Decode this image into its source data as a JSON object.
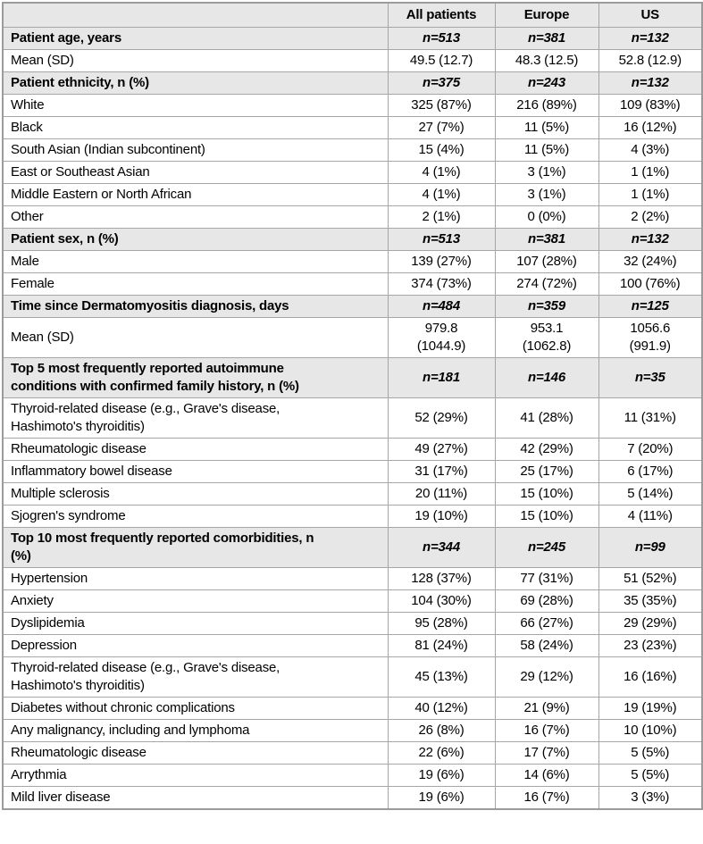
{
  "colors": {
    "section_row_bg": "#e7e7e7",
    "grid_border": "#a6a6a6",
    "text": "#000000"
  },
  "table": {
    "columns": [
      "",
      "All patients",
      "Europe",
      "US"
    ],
    "rows": [
      {
        "type": "section",
        "label": "Patient age, years",
        "values": [
          "n=513",
          "n=381",
          "n=132"
        ]
      },
      {
        "type": "data",
        "label": "Mean (SD)",
        "values": [
          "49.5 (12.7)",
          "48.3 (12.5)",
          "52.8 (12.9)"
        ]
      },
      {
        "type": "section",
        "label": "Patient ethnicity, n (%)",
        "values": [
          "n=375",
          "n=243",
          "n=132"
        ]
      },
      {
        "type": "data",
        "label": "White",
        "values": [
          "325 (87%)",
          "216 (89%)",
          "109 (83%)"
        ]
      },
      {
        "type": "data",
        "label": "Black",
        "values": [
          "27 (7%)",
          "11 (5%)",
          "16 (12%)"
        ]
      },
      {
        "type": "data",
        "label": "South Asian (Indian subcontinent)",
        "values": [
          "15 (4%)",
          "11 (5%)",
          "4 (3%)"
        ]
      },
      {
        "type": "data",
        "label": "East or Southeast Asian",
        "values": [
          "4 (1%)",
          "3 (1%)",
          "1 (1%)"
        ]
      },
      {
        "type": "data",
        "label": "Middle Eastern or North African",
        "values": [
          "4 (1%)",
          "3 (1%)",
          "1 (1%)"
        ]
      },
      {
        "type": "data",
        "label": "Other",
        "values": [
          "2 (1%)",
          "0 (0%)",
          "2 (2%)"
        ]
      },
      {
        "type": "section",
        "label": "Patient sex, n (%)",
        "values": [
          "n=513",
          "n=381",
          "n=132"
        ]
      },
      {
        "type": "data",
        "label": "Male",
        "values": [
          "139 (27%)",
          "107 (28%)",
          "32 (24%)"
        ]
      },
      {
        "type": "data",
        "label": "Female",
        "values": [
          "374 (73%)",
          "274 (72%)",
          "100 (76%)"
        ]
      },
      {
        "type": "section",
        "label": "Time since Dermatomyositis diagnosis, days",
        "values": [
          "n=484",
          "n=359",
          "n=125"
        ]
      },
      {
        "type": "data",
        "label": "Mean (SD)",
        "values": [
          "979.8\n(1044.9)",
          "953.1\n(1062.8)",
          "1056.6\n(991.9)"
        ]
      },
      {
        "type": "section",
        "label": "Top 5 most frequently reported autoimmune\nconditions with confirmed family history, n (%)",
        "values": [
          "n=181",
          "n=146",
          "n=35"
        ]
      },
      {
        "type": "data",
        "label": "Thyroid-related disease (e.g., Grave's disease,\nHashimoto's thyroiditis)",
        "values": [
          "52 (29%)",
          "41 (28%)",
          "11 (31%)"
        ]
      },
      {
        "type": "data",
        "label": "Rheumatologic disease",
        "values": [
          "49 (27%)",
          "42 (29%)",
          "7 (20%)"
        ]
      },
      {
        "type": "data",
        "label": "Inflammatory bowel disease",
        "values": [
          "31 (17%)",
          "25 (17%)",
          "6 (17%)"
        ]
      },
      {
        "type": "data",
        "label": "Multiple sclerosis",
        "values": [
          "20 (11%)",
          "15 (10%)",
          "5 (14%)"
        ]
      },
      {
        "type": "data",
        "label": "Sjogren's syndrome",
        "values": [
          "19 (10%)",
          "15 (10%)",
          "4 (11%)"
        ]
      },
      {
        "type": "section",
        "label": "Top 10 most frequently reported comorbidities, n\n(%)",
        "values": [
          "n=344",
          "n=245",
          "n=99"
        ]
      },
      {
        "type": "data",
        "label": "Hypertension",
        "values": [
          "128 (37%)",
          "77 (31%)",
          "51 (52%)"
        ]
      },
      {
        "type": "data",
        "label": "Anxiety",
        "values": [
          "104 (30%)",
          "69 (28%)",
          "35 (35%)"
        ]
      },
      {
        "type": "data",
        "label": "Dyslipidemia",
        "values": [
          "95 (28%)",
          "66 (27%)",
          "29 (29%)"
        ]
      },
      {
        "type": "data",
        "label": "Depression",
        "values": [
          "81 (24%)",
          "58 (24%)",
          "23 (23%)"
        ]
      },
      {
        "type": "data",
        "label": "Thyroid-related disease (e.g., Grave's disease,\nHashimoto's thyroiditis)",
        "values": [
          "45 (13%)",
          "29 (12%)",
          "16 (16%)"
        ]
      },
      {
        "type": "data",
        "label": "Diabetes without chronic complications",
        "values": [
          "40 (12%)",
          "21 (9%)",
          "19 (19%)"
        ]
      },
      {
        "type": "data",
        "label": "Any malignancy, including and lymphoma",
        "values": [
          "26 (8%)",
          "16 (7%)",
          "10 (10%)"
        ]
      },
      {
        "type": "data",
        "label": "Rheumatologic disease",
        "values": [
          "22 (6%)",
          "17 (7%)",
          "5 (5%)"
        ]
      },
      {
        "type": "data",
        "label": "Arrythmia",
        "values": [
          "19 (6%)",
          "14 (6%)",
          "5 (5%)"
        ]
      },
      {
        "type": "data",
        "label": "Mild liver disease",
        "values": [
          "19 (6%)",
          "16 (7%)",
          "3 (3%)"
        ]
      }
    ]
  }
}
